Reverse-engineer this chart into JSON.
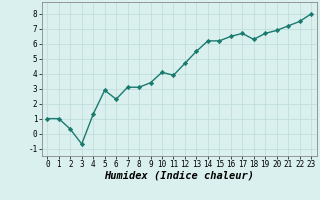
{
  "x": [
    0,
    1,
    2,
    3,
    4,
    5,
    6,
    7,
    8,
    9,
    10,
    11,
    12,
    13,
    14,
    15,
    16,
    17,
    18,
    19,
    20,
    21,
    22,
    23
  ],
  "y": [
    1.0,
    1.0,
    0.3,
    -0.7,
    1.3,
    2.9,
    2.3,
    3.1,
    3.1,
    3.4,
    4.1,
    3.9,
    4.7,
    5.5,
    6.2,
    6.2,
    6.5,
    6.7,
    6.3,
    6.7,
    6.9,
    7.2,
    7.5,
    8.0
  ],
  "line_color": "#1a7a6e",
  "marker": "D",
  "marker_size": 2.2,
  "line_width": 1.0,
  "bg_color": "#d9f0ef",
  "grid_color": "#c0dedd",
  "xlabel": "Humidex (Indice chaleur)",
  "xlabel_fontsize": 7.5,
  "xlabel_fontweight": "bold",
  "xlabel_fontstyle": "italic",
  "ylim": [
    -1.5,
    8.8
  ],
  "xlim": [
    -0.5,
    23.5
  ],
  "yticks": [
    -1,
    0,
    1,
    2,
    3,
    4,
    5,
    6,
    7,
    8
  ],
  "xticks": [
    0,
    1,
    2,
    3,
    4,
    5,
    6,
    7,
    8,
    9,
    10,
    11,
    12,
    13,
    14,
    15,
    16,
    17,
    18,
    19,
    20,
    21,
    22,
    23
  ],
  "tick_fontsize": 5.5
}
